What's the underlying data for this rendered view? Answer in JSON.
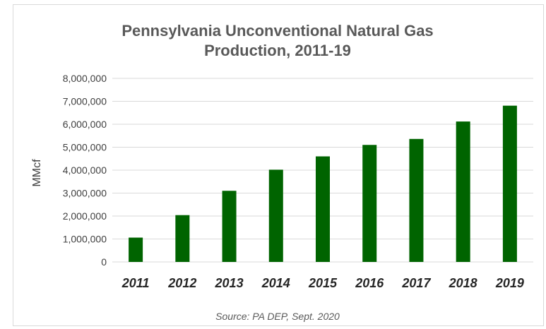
{
  "chart_data": {
    "type": "bar",
    "title_lines": [
      "Pennsylvania Unconventional Natural Gas",
      "Production, 2011-19"
    ],
    "ylabel": "MMcf",
    "xlabel": "",
    "categories": [
      "2011",
      "2012",
      "2013",
      "2014",
      "2015",
      "2016",
      "2017",
      "2018",
      "2019"
    ],
    "values": [
      1060000,
      2040000,
      3100000,
      4020000,
      4600000,
      5100000,
      5360000,
      6120000,
      6810000
    ],
    "ylim": [
      0,
      8000000
    ],
    "yticks": [
      "0",
      "1,000,000",
      "2,000,000",
      "3,000,000",
      "4,000,000",
      "5,000,000",
      "6,000,000",
      "7,000,000",
      "8,000,000"
    ],
    "grid": true,
    "bar_color": "#006400",
    "grid_color": "#d9d9d9",
    "source": "Source: PA DEP, Sept. 2020"
  }
}
